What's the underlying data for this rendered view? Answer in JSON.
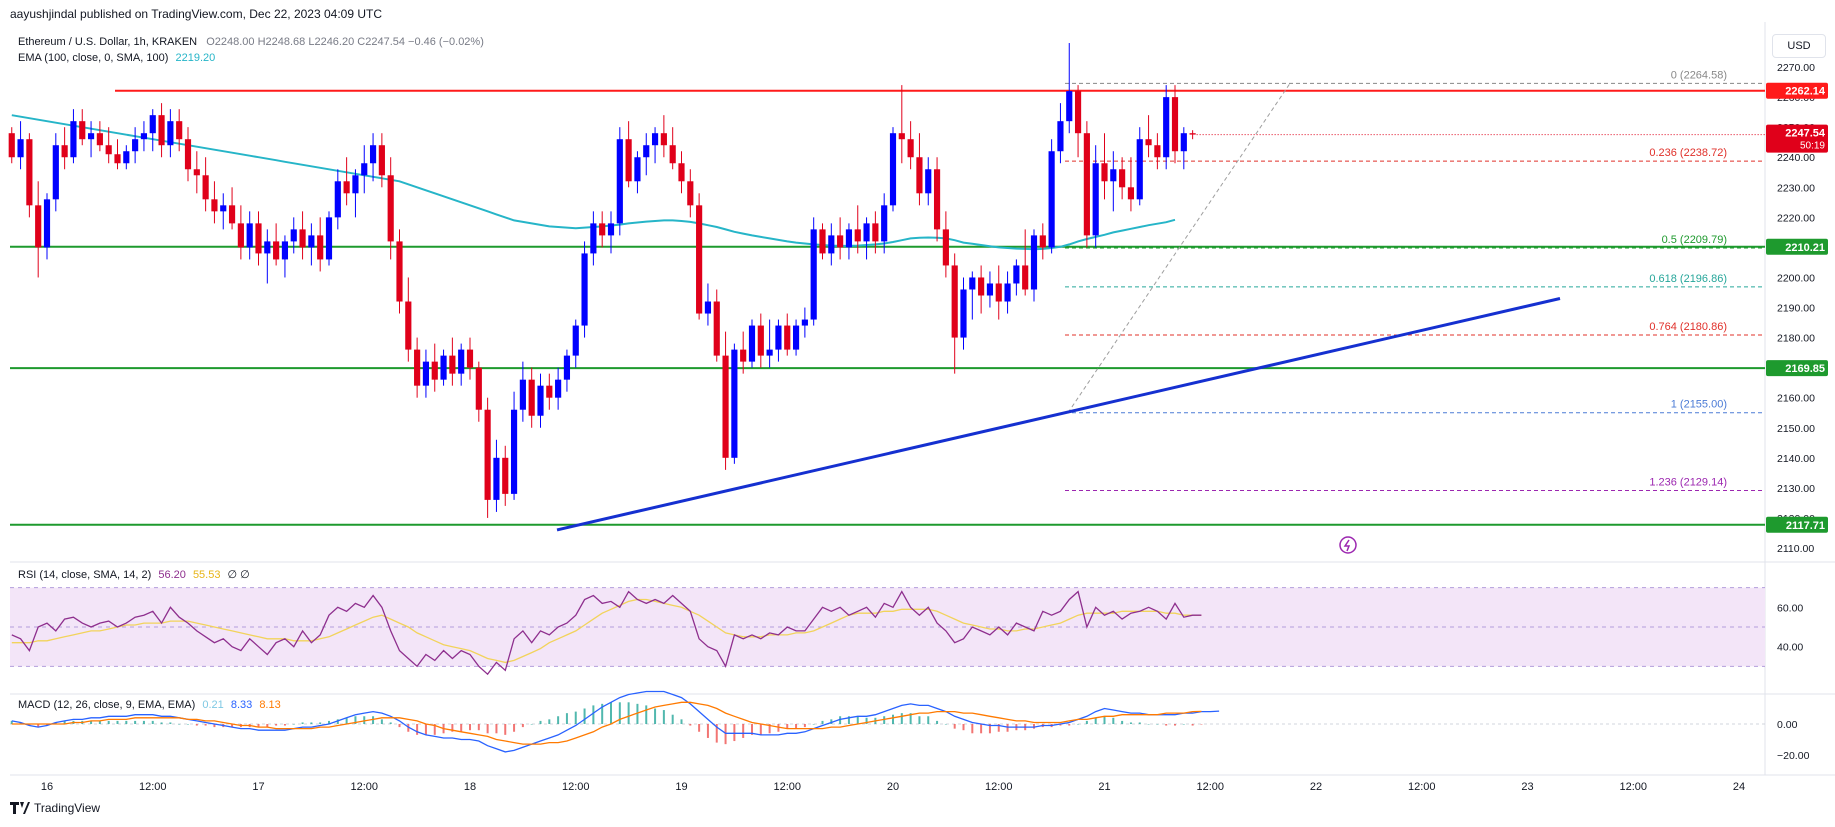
{
  "publisher_line": "aayushjindal published on TradingView.com, Dec 22, 2023 04:09 UTC",
  "currency_button": "USD",
  "brand": "TradingView",
  "header": {
    "symbol": "Ethereum / U.S. Dollar, 1h, KRAKEN",
    "ohlc": "O2248.00 H2248.68 L2246.20 C2247.54 −0.46 (−0.02%)",
    "ema_label": "EMA (100, close, 0, SMA, 100)",
    "ema_value": "2219.20"
  },
  "rsi_header": {
    "label": "RSI (14, close, SMA, 14, 2)",
    "v1": "56.20",
    "v2": "55.53",
    "v3": "∅ ∅"
  },
  "macd_header": {
    "label": "MACD (12, 26, close, 9, EMA, EMA)",
    "hist": "0.21",
    "macd": "8.33",
    "signal": "8.13"
  },
  "colors": {
    "up": "#0000ff",
    "down": "#e0001a",
    "ema": "#26b5c8",
    "support": "#1e9a2e",
    "resistance": "#ff1a1a",
    "trend": "#1530d0",
    "rsi": "#8e2f8e",
    "rsi_ma": "#f2d35b",
    "macd": "#2962ff",
    "signal": "#ff7a00"
  },
  "chart_data": {
    "type": "candlestick",
    "x_ticks": [
      "16",
      "12:00",
      "17",
      "12:00",
      "18",
      "12:00",
      "19",
      "12:00",
      "20",
      "12:00",
      "21",
      "12:00",
      "22",
      "12:00",
      "23",
      "12:00",
      "24"
    ],
    "price_ticks": [
      2110,
      2120,
      2130,
      2140,
      2150,
      2160,
      2170,
      2180,
      2190,
      2200,
      2210,
      2220,
      2230,
      2240,
      2250,
      2260,
      2270
    ],
    "ylim": [
      2106,
      2283
    ],
    "horizontal_levels": [
      {
        "label": "2262.14",
        "value": 2262.14,
        "color": "#ff1a1a"
      },
      {
        "label": "2210.21",
        "value": 2210.21,
        "color": "#1e9a2e"
      },
      {
        "label": "2169.85",
        "value": 2169.85,
        "color": "#1e9a2e"
      },
      {
        "label": "2117.71",
        "value": 2117.71,
        "color": "#1e9a2e"
      }
    ],
    "last_price": {
      "label": "2247.54",
      "countdown": "50:19"
    },
    "fibonacci": [
      {
        "ratio": "0",
        "value": 2264.58,
        "label": "(2264.58)",
        "color": "#888888"
      },
      {
        "ratio": "0.236",
        "value": 2238.72,
        "label": "(2238.72)",
        "color": "#e0302a"
      },
      {
        "ratio": "0.5",
        "value": 2209.79,
        "label": "(2209.79)",
        "color": "#1e9a2e"
      },
      {
        "ratio": "0.618",
        "value": 2196.86,
        "label": "(2196.86)",
        "color": "#26a69a"
      },
      {
        "ratio": "0.764",
        "value": 2180.86,
        "label": "(2180.86)",
        "color": "#e0302a"
      },
      {
        "ratio": "1",
        "value": 2155.0,
        "label": "(2155.00)",
        "color": "#4b7bd6"
      },
      {
        "ratio": "1.236",
        "value": 2129.14,
        "label": "(2129.14)",
        "color": "#9c27b0"
      }
    ],
    "trendline": {
      "from_value": 2116,
      "to_value": 2193
    },
    "candles": [
      [
        2248,
        2250,
        2238,
        2240
      ],
      [
        2240,
        2252,
        2236,
        2246
      ],
      [
        2246,
        2248,
        2220,
        2224
      ],
      [
        2224,
        2232,
        2200,
        2210
      ],
      [
        2210,
        2228,
        2206,
        2226
      ],
      [
        2226,
        2248,
        2222,
        2244
      ],
      [
        2244,
        2250,
        2236,
        2240
      ],
      [
        2240,
        2256,
        2238,
        2252
      ],
      [
        2252,
        2256,
        2244,
        2246
      ],
      [
        2246,
        2252,
        2240,
        2248
      ],
      [
        2248,
        2252,
        2242,
        2244
      ],
      [
        2244,
        2250,
        2238,
        2241
      ],
      [
        2241,
        2246,
        2236,
        2238
      ],
      [
        2238,
        2244,
        2236,
        2242
      ],
      [
        2242,
        2250,
        2238,
        2246
      ],
      [
        2246,
        2252,
        2242,
        2248
      ],
      [
        2248,
        2256,
        2242,
        2254
      ],
      [
        2254,
        2258,
        2240,
        2244
      ],
      [
        2244,
        2256,
        2240,
        2252
      ],
      [
        2252,
        2256,
        2242,
        2246
      ],
      [
        2246,
        2250,
        2232,
        2236
      ],
      [
        2236,
        2242,
        2228,
        2234
      ],
      [
        2234,
        2240,
        2222,
        2226
      ],
      [
        2226,
        2232,
        2218,
        2222
      ],
      [
        2222,
        2228,
        2216,
        2224
      ],
      [
        2224,
        2230,
        2216,
        2218
      ],
      [
        2218,
        2224,
        2206,
        2210
      ],
      [
        2210,
        2222,
        2206,
        2218
      ],
      [
        2218,
        2222,
        2204,
        2208
      ],
      [
        2208,
        2216,
        2198,
        2212
      ],
      [
        2212,
        2218,
        2204,
        2206
      ],
      [
        2206,
        2214,
        2200,
        2212
      ],
      [
        2212,
        2220,
        2208,
        2216
      ],
      [
        2216,
        2222,
        2206,
        2210
      ],
      [
        2210,
        2218,
        2204,
        2214
      ],
      [
        2214,
        2220,
        2202,
        2206
      ],
      [
        2206,
        2222,
        2204,
        2220
      ],
      [
        2220,
        2236,
        2216,
        2232
      ],
      [
        2232,
        2240,
        2224,
        2228
      ],
      [
        2228,
        2236,
        2220,
        2234
      ],
      [
        2234,
        2244,
        2228,
        2238
      ],
      [
        2238,
        2248,
        2232,
        2244
      ],
      [
        2244,
        2248,
        2230,
        2234
      ],
      [
        2234,
        2240,
        2206,
        2212
      ],
      [
        2212,
        2216,
        2188,
        2192
      ],
      [
        2192,
        2200,
        2172,
        2176
      ],
      [
        2176,
        2180,
        2160,
        2164
      ],
      [
        2164,
        2176,
        2160,
        2172
      ],
      [
        2172,
        2178,
        2162,
        2166
      ],
      [
        2166,
        2176,
        2164,
        2174
      ],
      [
        2174,
        2180,
        2164,
        2168
      ],
      [
        2168,
        2178,
        2164,
        2176
      ],
      [
        2176,
        2180,
        2166,
        2170
      ],
      [
        2170,
        2172,
        2152,
        2156
      ],
      [
        2156,
        2160,
        2120,
        2126
      ],
      [
        2126,
        2146,
        2122,
        2140
      ],
      [
        2140,
        2144,
        2124,
        2128
      ],
      [
        2128,
        2162,
        2126,
        2156
      ],
      [
        2156,
        2172,
        2152,
        2166
      ],
      [
        2166,
        2170,
        2150,
        2154
      ],
      [
        2154,
        2168,
        2150,
        2164
      ],
      [
        2164,
        2168,
        2156,
        2160
      ],
      [
        2160,
        2170,
        2156,
        2166
      ],
      [
        2166,
        2176,
        2162,
        2174
      ],
      [
        2174,
        2186,
        2170,
        2184
      ],
      [
        2184,
        2212,
        2180,
        2208
      ],
      [
        2208,
        2222,
        2204,
        2218
      ],
      [
        2218,
        2222,
        2210,
        2214
      ],
      [
        2214,
        2222,
        2208,
        2218
      ],
      [
        2218,
        2250,
        2214,
        2246
      ],
      [
        2246,
        2252,
        2230,
        2232
      ],
      [
        2232,
        2242,
        2228,
        2240
      ],
      [
        2240,
        2248,
        2234,
        2244
      ],
      [
        2244,
        2250,
        2238,
        2248
      ],
      [
        2248,
        2254,
        2240,
        2244
      ],
      [
        2244,
        2250,
        2236,
        2238
      ],
      [
        2238,
        2242,
        2228,
        2232
      ],
      [
        2232,
        2236,
        2220,
        2224
      ],
      [
        2224,
        2228,
        2186,
        2188
      ],
      [
        2188,
        2198,
        2184,
        2192
      ],
      [
        2192,
        2196,
        2172,
        2174
      ],
      [
        2174,
        2182,
        2136,
        2140
      ],
      [
        2140,
        2178,
        2138,
        2176
      ],
      [
        2176,
        2182,
        2168,
        2172
      ],
      [
        2172,
        2186,
        2170,
        2184
      ],
      [
        2184,
        2188,
        2170,
        2174
      ],
      [
        2174,
        2186,
        2170,
        2176
      ],
      [
        2176,
        2186,
        2172,
        2184
      ],
      [
        2184,
        2188,
        2174,
        2176
      ],
      [
        2176,
        2186,
        2174,
        2184
      ],
      [
        2184,
        2190,
        2180,
        2186
      ],
      [
        2186,
        2220,
        2184,
        2216
      ],
      [
        2216,
        2218,
        2206,
        2208
      ],
      [
        2208,
        2218,
        2204,
        2214
      ],
      [
        2214,
        2220,
        2206,
        2210
      ],
      [
        2210,
        2218,
        2206,
        2216
      ],
      [
        2216,
        2224,
        2208,
        2212
      ],
      [
        2212,
        2220,
        2206,
        2218
      ],
      [
        2218,
        2222,
        2208,
        2212
      ],
      [
        2212,
        2228,
        2208,
        2224
      ],
      [
        2224,
        2250,
        2222,
        2248
      ],
      [
        2248,
        2264,
        2238,
        2246
      ],
      [
        2246,
        2252,
        2236,
        2240
      ],
      [
        2240,
        2248,
        2224,
        2228
      ],
      [
        2228,
        2240,
        2224,
        2236
      ],
      [
        2236,
        2240,
        2212,
        2216
      ],
      [
        2216,
        2222,
        2200,
        2204
      ],
      [
        2204,
        2208,
        2168,
        2180
      ],
      [
        2180,
        2200,
        2176,
        2196
      ],
      [
        2196,
        2202,
        2186,
        2200
      ],
      [
        2200,
        2204,
        2188,
        2194
      ],
      [
        2194,
        2202,
        2190,
        2198
      ],
      [
        2198,
        2204,
        2186,
        2192
      ],
      [
        2192,
        2202,
        2188,
        2198
      ],
      [
        2198,
        2206,
        2194,
        2204
      ],
      [
        2204,
        2216,
        2194,
        2196
      ],
      [
        2196,
        2216,
        2192,
        2214
      ],
      [
        2214,
        2218,
        2206,
        2210
      ],
      [
        2210,
        2246,
        2208,
        2242
      ],
      [
        2242,
        2258,
        2238,
        2252
      ],
      [
        2252,
        2278,
        2248,
        2262
      ],
      [
        2262,
        2264,
        2240,
        2248
      ],
      [
        2248,
        2252,
        2210,
        2214
      ],
      [
        2214,
        2244,
        2210,
        2238
      ],
      [
        2238,
        2248,
        2226,
        2232
      ],
      [
        2232,
        2242,
        2222,
        2236
      ],
      [
        2236,
        2240,
        2226,
        2230
      ],
      [
        2230,
        2240,
        2222,
        2226
      ],
      [
        2226,
        2250,
        2224,
        2246
      ],
      [
        2246,
        2254,
        2240,
        2244
      ],
      [
        2244,
        2248,
        2236,
        2240
      ],
      [
        2240,
        2264,
        2236,
        2260
      ],
      [
        2260,
        2264,
        2238,
        2242
      ],
      [
        2242,
        2250,
        2236,
        2248
      ],
      [
        2248,
        2249,
        2246,
        2247.54
      ]
    ],
    "ema100": [
      2254,
      2253.5,
      2253,
      2252.5,
      2252,
      2251.5,
      2251,
      2250.5,
      2250,
      2249.5,
      2249,
      2248.5,
      2248,
      2247.5,
      2247,
      2246.5,
      2246,
      2245.5,
      2245,
      2244.5,
      2244,
      2243.5,
      2243,
      2242.5,
      2242,
      2241.5,
      2241,
      2240.5,
      2240,
      2239.5,
      2239,
      2238.5,
      2238,
      2237.5,
      2237,
      2236.5,
      2236,
      2235.5,
      2235,
      2234.5,
      2234,
      2233.5,
      2233,
      2232.5,
      2232,
      2231,
      2230,
      2229,
      2228,
      2227,
      2226,
      2225,
      2224,
      2223,
      2222,
      2221,
      2220,
      2219,
      2218.5,
      2218,
      2217.5,
      2217,
      2216.8,
      2216.6,
      2216.4,
      2216.6,
      2216.8,
      2217,
      2217.3,
      2217.6,
      2218,
      2218.3,
      2218.6,
      2218.8,
      2219,
      2219,
      2218.8,
      2218.5,
      2218,
      2217.4,
      2216.8,
      2216,
      2215.2,
      2214.6,
      2214,
      2213.5,
      2213,
      2212.5,
      2212,
      2211.6,
      2211.3,
      2211,
      2210.8,
      2210.6,
      2210.5,
      2210.5,
      2210.6,
      2210.8,
      2211,
      2211.3,
      2211.8,
      2212.4,
      2213,
      2213.2,
      2213.3,
      2213.2,
      2213,
      2212.4,
      2211.6,
      2211.2,
      2210.8,
      2210.4,
      2210,
      2209.8,
      2209.6,
      2209.5,
      2209.4,
      2209.5,
      2209.8,
      2210.2,
      2211,
      2212,
      2212.8,
      2213.5,
      2214.2,
      2215,
      2215.6,
      2216.2,
      2216.8,
      2217.4,
      2217.9,
      2218.4,
      2219.2
    ],
    "rsi": [
      46,
      44,
      38,
      50,
      52,
      48,
      54,
      55,
      52,
      50,
      52,
      53,
      50,
      52,
      55,
      56,
      58,
      52,
      60,
      55,
      52,
      48,
      45,
      42,
      44,
      40,
      38,
      44,
      40,
      36,
      42,
      44,
      40,
      48,
      42,
      46,
      56,
      60,
      58,
      62,
      60,
      66,
      60,
      48,
      38,
      34,
      30,
      36,
      33,
      38,
      34,
      38,
      36,
      30,
      26,
      32,
      28,
      44,
      48,
      42,
      48,
      46,
      50,
      52,
      56,
      64,
      66,
      62,
      63,
      60,
      68,
      64,
      62,
      64,
      62,
      66,
      62,
      58,
      44,
      40,
      38,
      30,
      46,
      44,
      46,
      44,
      47,
      46,
      50,
      48,
      48,
      54,
      60,
      58,
      60,
      56,
      58,
      60,
      55,
      62,
      60,
      68,
      60,
      56,
      60,
      52,
      48,
      42,
      44,
      50,
      48,
      46,
      50,
      46,
      52,
      50,
      48,
      58,
      56,
      58,
      64,
      68,
      50,
      60,
      56,
      58,
      54,
      57,
      58,
      60,
      58,
      54,
      62,
      55,
      56,
      56
    ],
    "rsi_ma": [
      42,
      42,
      42,
      43,
      43,
      44,
      45,
      46,
      47,
      48,
      48,
      49,
      50,
      51,
      51,
      52,
      52,
      52,
      53,
      53,
      53,
      52,
      51,
      50,
      49,
      48,
      47,
      46,
      45,
      44,
      44,
      44,
      43,
      43,
      43,
      44,
      45,
      47,
      49,
      51,
      53,
      55,
      56,
      54,
      52,
      50,
      47,
      45,
      43,
      41,
      40,
      39,
      38,
      36,
      34,
      33,
      32,
      33,
      35,
      37,
      39,
      42,
      44,
      46,
      48,
      51,
      54,
      57,
      59,
      61,
      63,
      64,
      64,
      63,
      62,
      61,
      60,
      58,
      56,
      53,
      50,
      47,
      46,
      45,
      45,
      45,
      46,
      46,
      46,
      47,
      47,
      48,
      50,
      52,
      54,
      56,
      57,
      57,
      57,
      58,
      58,
      59,
      59,
      59,
      59,
      58,
      56,
      54,
      52,
      51,
      50,
      49,
      49,
      48,
      48,
      49,
      49,
      50,
      51,
      52,
      54,
      56,
      57,
      57,
      57,
      57,
      58,
      58,
      58,
      58,
      58,
      57,
      57,
      56,
      56,
      56
    ],
    "macd": [
      2,
      1,
      -1,
      -2,
      -1,
      1,
      2,
      3,
      3,
      4,
      4,
      5,
      5,
      5,
      6,
      6,
      6,
      5,
      5,
      4,
      3,
      2,
      1,
      0,
      -1,
      -2,
      -3,
      -3,
      -4,
      -4,
      -4,
      -4,
      -3,
      -2,
      -2,
      -1,
      0,
      2,
      4,
      6,
      7,
      8,
      7,
      5,
      2,
      -2,
      -5,
      -7,
      -8,
      -9,
      -9,
      -10,
      -10,
      -11,
      -14,
      -16,
      -18,
      -17,
      -15,
      -13,
      -11,
      -9,
      -7,
      -4,
      -1,
      3,
      7,
      11,
      14,
      17,
      19,
      20,
      21,
      21,
      21,
      19,
      17,
      13,
      8,
      3,
      -2,
      -6,
      -6,
      -6,
      -6,
      -7,
      -7,
      -7,
      -6,
      -6,
      -5,
      -3,
      -1,
      1,
      3,
      4,
      5,
      5,
      6,
      8,
      10,
      12,
      13,
      12,
      12,
      10,
      8,
      5,
      3,
      1,
      0,
      -1,
      -1,
      -2,
      -2,
      -2,
      -2,
      -1,
      -1,
      0,
      1,
      3,
      5,
      8,
      10,
      9,
      8,
      7,
      7,
      6,
      6,
      6,
      6,
      7,
      7,
      8,
      8,
      8.33
    ],
    "signal": [
      0,
      0,
      0,
      0,
      0,
      0,
      0,
      1,
      1,
      2,
      2,
      3,
      3,
      3,
      4,
      4,
      4,
      4,
      4,
      4,
      3,
      3,
      2,
      2,
      1,
      0,
      -1,
      -1,
      -2,
      -2,
      -3,
      -3,
      -3,
      -3,
      -3,
      -2,
      -2,
      -1,
      0,
      1,
      2,
      3,
      4,
      4,
      4,
      3,
      2,
      0,
      -1,
      -3,
      -4,
      -5,
      -6,
      -7,
      -8,
      -10,
      -11,
      -12,
      -13,
      -13,
      -13,
      -12,
      -12,
      -11,
      -9,
      -7,
      -5,
      -2,
      0,
      3,
      5,
      7,
      9,
      11,
      12,
      13,
      14,
      14,
      13,
      12,
      10,
      7,
      5,
      3,
      1,
      0,
      -1,
      -2,
      -3,
      -3,
      -3,
      -3,
      -3,
      -2,
      -2,
      -1,
      0,
      1,
      2,
      3,
      4,
      5,
      6,
      7,
      7,
      8,
      8,
      8,
      7,
      7,
      6,
      5,
      4,
      3,
      2,
      2,
      1,
      1,
      1,
      1,
      2,
      3,
      3,
      4,
      5,
      5,
      6,
      6,
      6,
      6,
      6,
      7,
      7,
      7,
      8,
      8.13
    ],
    "rsi_ticks": [
      60,
      40
    ],
    "macd_ticks": [
      "0.00",
      "−20.00"
    ]
  }
}
